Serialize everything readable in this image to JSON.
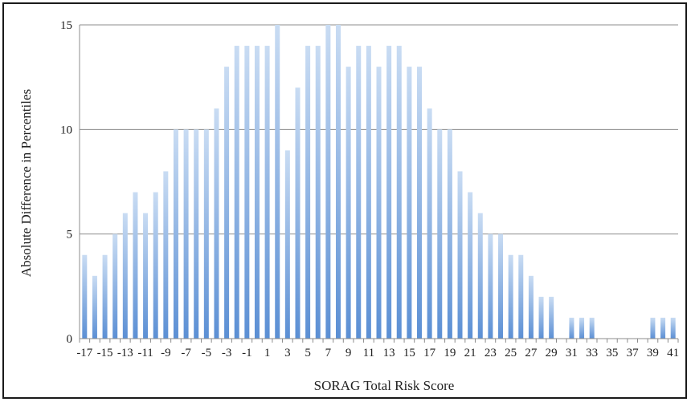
{
  "chart_data": {
    "type": "bar",
    "title": "",
    "xlabel": "SORAG Total Risk Score",
    "ylabel": "Absolute Difference in Percentiles",
    "ylim": [
      0,
      15
    ],
    "yticks": [
      "0",
      "5",
      "10",
      "15"
    ],
    "grid": "horizontal",
    "legend": "none",
    "bar_color": "#5b8fd4",
    "bar_color_light": "#c9dcf3",
    "categories": [
      -17,
      -16,
      -15,
      -14,
      -13,
      -12,
      -11,
      -10,
      -9,
      -8,
      -7,
      -6,
      -5,
      -4,
      -3,
      -2,
      -1,
      0,
      1,
      2,
      3,
      4,
      5,
      6,
      7,
      8,
      9,
      10,
      11,
      12,
      13,
      14,
      15,
      16,
      17,
      18,
      19,
      20,
      21,
      22,
      23,
      24,
      25,
      26,
      27,
      28,
      29,
      30,
      31,
      32,
      33,
      34,
      35,
      36,
      37,
      38,
      39,
      40,
      41
    ],
    "values": [
      4,
      3,
      4,
      5,
      6,
      7,
      6,
      7,
      8,
      10,
      10,
      10,
      10,
      11,
      13,
      14,
      14,
      14,
      14,
      15,
      9,
      12,
      14,
      14,
      15,
      15,
      13,
      14,
      14,
      13,
      14,
      14,
      13,
      13,
      11,
      10,
      10,
      8,
      7,
      6,
      5,
      5,
      4,
      4,
      3,
      2,
      2,
      0,
      1,
      1,
      1,
      0,
      0,
      0,
      0,
      0,
      1,
      1,
      1
    ],
    "xtick_labels": [
      "-17",
      "-15",
      "-13",
      "-11",
      "-9",
      "-7",
      "-5",
      "-3",
      "-1",
      "1",
      "3",
      "5",
      "7",
      "9",
      "11",
      "13",
      "15",
      "17",
      "19",
      "21",
      "23",
      "25",
      "27",
      "29",
      "31",
      "33",
      "35",
      "37",
      "39",
      "41"
    ]
  }
}
